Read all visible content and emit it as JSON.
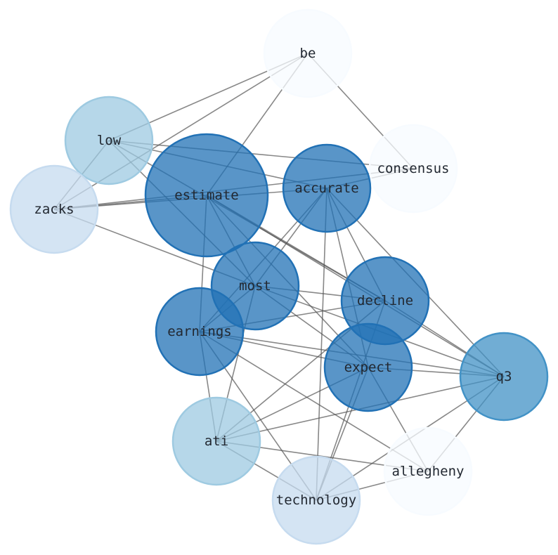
{
  "graph": {
    "nodes": [
      {
        "id": "be",
        "label": "be",
        "color": "#f7fbff"
      },
      {
        "id": "consensus",
        "label": "consensus",
        "color": "#f7fbff"
      },
      {
        "id": "low",
        "label": "low",
        "color": "#9ecae1"
      },
      {
        "id": "zacks",
        "label": "zacks",
        "color": "#c6dbef"
      },
      {
        "id": "estimate",
        "label": "estimate",
        "color": "#2171b5"
      },
      {
        "id": "accurate",
        "label": "accurate",
        "color": "#2171b5"
      },
      {
        "id": "most",
        "label": "most",
        "color": "#2171b5"
      },
      {
        "id": "decline",
        "label": "decline",
        "color": "#2171b5"
      },
      {
        "id": "earnings",
        "label": "earnings",
        "color": "#2171b5"
      },
      {
        "id": "expect",
        "label": "expect",
        "color": "#2171b5"
      },
      {
        "id": "q3",
        "label": "q3",
        "color": "#4292c6"
      },
      {
        "id": "ati",
        "label": "ati",
        "color": "#9ecae1"
      },
      {
        "id": "allegheny",
        "label": "allegheny",
        "color": "#f7fbff"
      },
      {
        "id": "technology",
        "label": "technology",
        "color": "#c6dbef"
      }
    ],
    "edges": [
      [
        "be",
        "low"
      ],
      [
        "be",
        "zacks"
      ],
      [
        "be",
        "estimate"
      ],
      [
        "be",
        "consensus"
      ],
      [
        "low",
        "zacks"
      ],
      [
        "low",
        "consensus"
      ],
      [
        "low",
        "accurate"
      ],
      [
        "low",
        "most"
      ],
      [
        "low",
        "decline"
      ],
      [
        "zacks",
        "consensus"
      ],
      [
        "zacks",
        "accurate"
      ],
      [
        "zacks",
        "estimate"
      ],
      [
        "zacks",
        "most"
      ],
      [
        "estimate",
        "most"
      ],
      [
        "estimate",
        "earnings"
      ],
      [
        "estimate",
        "decline"
      ],
      [
        "estimate",
        "expect"
      ],
      [
        "estimate",
        "q3"
      ],
      [
        "accurate",
        "consensus"
      ],
      [
        "accurate",
        "most"
      ],
      [
        "accurate",
        "earnings"
      ],
      [
        "accurate",
        "expect"
      ],
      [
        "accurate",
        "decline"
      ],
      [
        "accurate",
        "q3"
      ],
      [
        "accurate",
        "technology"
      ],
      [
        "most",
        "decline"
      ],
      [
        "most",
        "expect"
      ],
      [
        "most",
        "q3"
      ],
      [
        "most",
        "ati"
      ],
      [
        "most",
        "earnings"
      ],
      [
        "decline",
        "earnings"
      ],
      [
        "decline",
        "ati"
      ],
      [
        "decline",
        "technology"
      ],
      [
        "decline",
        "q3"
      ],
      [
        "earnings",
        "q3"
      ],
      [
        "earnings",
        "expect"
      ],
      [
        "earnings",
        "allegheny"
      ],
      [
        "earnings",
        "technology"
      ],
      [
        "earnings",
        "ati"
      ],
      [
        "expect",
        "q3"
      ],
      [
        "expect",
        "ati"
      ],
      [
        "expect",
        "allegheny"
      ],
      [
        "expect",
        "technology"
      ],
      [
        "q3",
        "ati"
      ],
      [
        "q3",
        "technology"
      ],
      [
        "q3",
        "allegheny"
      ],
      [
        "ati",
        "allegheny"
      ],
      [
        "ati",
        "technology"
      ],
      [
        "technology",
        "allegheny"
      ]
    ],
    "edge_color": "#555555"
  }
}
